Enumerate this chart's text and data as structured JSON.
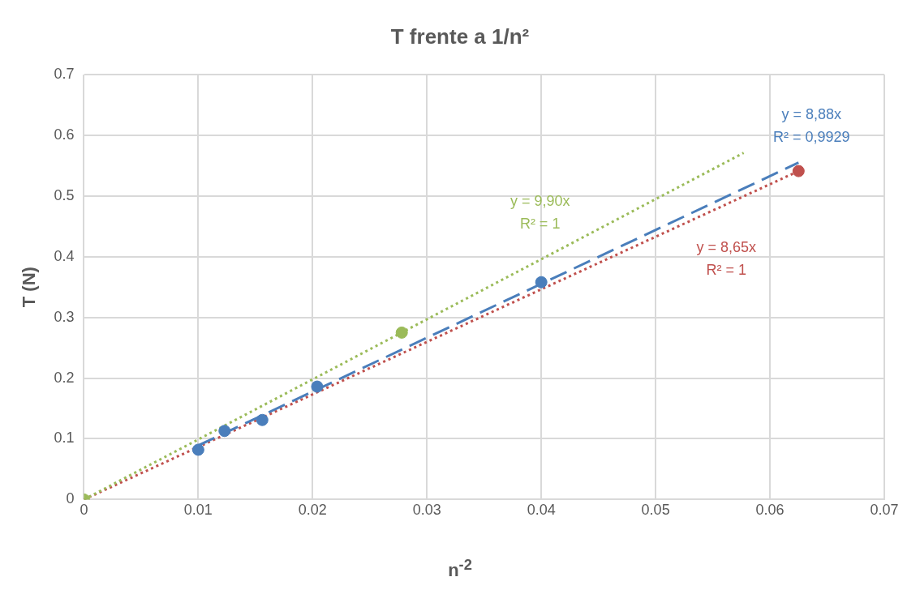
{
  "chart_data": {
    "type": "scatter",
    "title": "T frente a 1/n²",
    "xlabel": "n$^{-2}$",
    "ylabel": "T (N)",
    "xlim": [
      0,
      0.07
    ],
    "xticks": [
      0,
      0.01,
      0.02,
      0.03,
      0.04,
      0.05,
      0.06,
      0.07
    ],
    "ylim": [
      0,
      0.7
    ],
    "yticks": [
      0,
      0.1,
      0.2,
      0.3,
      0.4,
      0.5,
      0.6,
      0.7
    ],
    "grid": true,
    "legend": false,
    "marker": "circle",
    "series": [
      {
        "type": "line",
        "name": "y = 8,88x\nR² = 0,9929",
        "marker": "none",
        "color": "#4a7ebb",
        "line_style": "dashed",
        "x": [
          0.01,
          0.0625
        ],
        "values": [
          0.089,
          0.555
        ]
      },
      {
        "type": "line",
        "name": "y = 9,90x\nR² = 1",
        "marker": "none",
        "color": "#9bbb59",
        "line_style": "dotted",
        "x": [
          0,
          0.0577
        ],
        "values": [
          0,
          0.571
        ]
      },
      {
        "type": "line",
        "name": "y = 8,65x\nR² = 1",
        "marker": "none",
        "color": "#c0504d",
        "line_style": "dotted",
        "x": [
          0,
          0.0625
        ],
        "values": [
          0,
          0.541
        ]
      },
      {
        "color": "#4a7ebb",
        "x": [
          0.01,
          0.0123,
          0.0156,
          0.0204,
          0.04
        ],
        "values": [
          0.082,
          0.113,
          0.131,
          0.186,
          0.358
        ]
      },
      {
        "color": "#9bbb59",
        "x": [
          0,
          0.0278
        ],
        "values": [
          0,
          0.275
        ]
      },
      {
        "color": "#c0504d",
        "x": [
          0.0625
        ],
        "values": [
          0.541
        ]
      }
    ]
  }
}
